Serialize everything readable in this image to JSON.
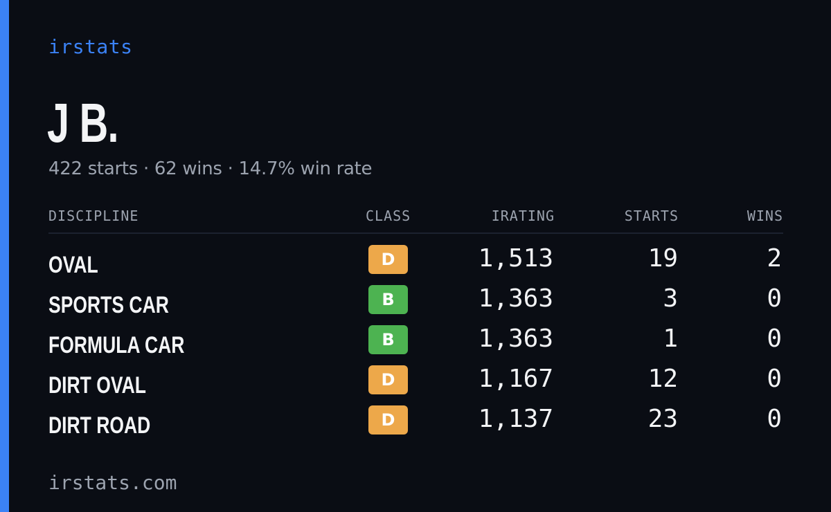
{
  "brand": "irstats",
  "driver_name": "J B.",
  "summary": "422 starts · 62 wins · 14.7% win rate",
  "columns": {
    "discipline": "DISCIPLINE",
    "class": "CLASS",
    "irating": "IRATING",
    "starts": "STARTS",
    "wins": "WINS"
  },
  "rows": [
    {
      "discipline": "OVAL",
      "class": "D",
      "irating": "1,513",
      "starts": "19",
      "wins": "2"
    },
    {
      "discipline": "SPORTS CAR",
      "class": "B",
      "irating": "1,363",
      "starts": "3",
      "wins": "0"
    },
    {
      "discipline": "FORMULA CAR",
      "class": "B",
      "irating": "1,363",
      "starts": "1",
      "wins": "0"
    },
    {
      "discipline": "DIRT OVAL",
      "class": "D",
      "irating": "1,167",
      "starts": "12",
      "wins": "0"
    },
    {
      "discipline": "DIRT ROAD",
      "class": "D",
      "irating": "1,137",
      "starts": "23",
      "wins": "0"
    }
  ],
  "class_colors": {
    "D": "#eda84a",
    "B": "#4db351"
  },
  "accent_color": "#3b82f6",
  "footer": "irstats.com"
}
